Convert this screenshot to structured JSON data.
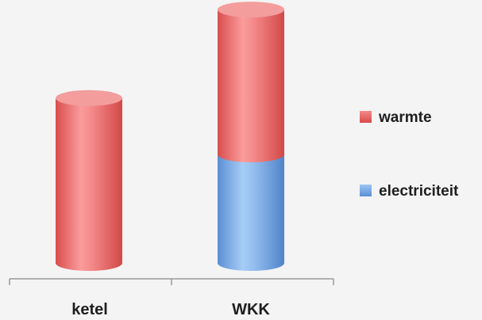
{
  "chart_data": {
    "type": "bar",
    "stacked": true,
    "style": "3d-cylinder",
    "categories": [
      "ketel",
      "WKK"
    ],
    "series": [
      {
        "name": "electriciteit",
        "values": [
          0,
          135
        ]
      },
      {
        "name": "warmte",
        "values": [
          205,
          180
        ]
      }
    ],
    "ylim": [
      0,
      320
    ],
    "legend_position": "right",
    "grid": false
  },
  "colors": {
    "warmte": "#e55a5a",
    "electriciteit": "#6fa2e0",
    "axis": "#9a9a9a",
    "background": "#f4f4f4"
  }
}
